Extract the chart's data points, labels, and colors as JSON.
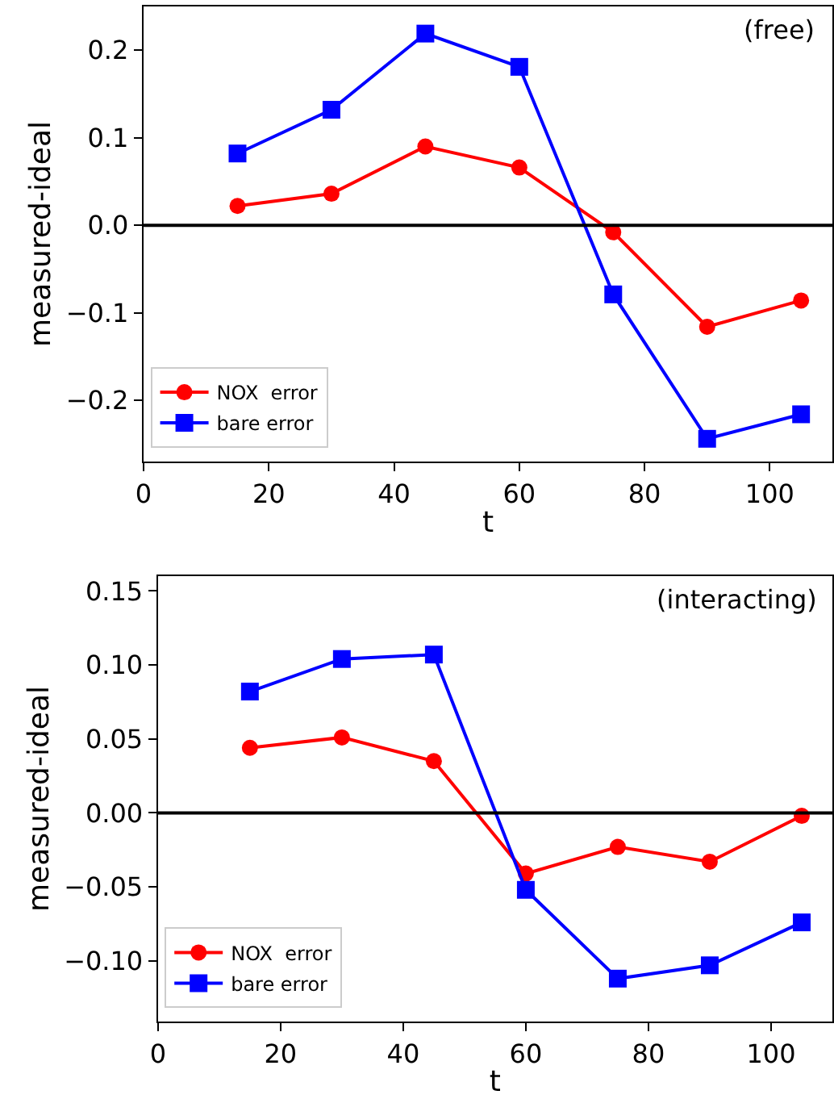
{
  "chart_data": [
    {
      "type": "line",
      "xlabel": "t",
      "ylabel": "measured-ideal",
      "annotations": [
        "(free)"
      ],
      "x": [
        15,
        30,
        45,
        60,
        75,
        90,
        105
      ],
      "xlim": [
        0,
        110
      ],
      "xticks": [
        0,
        20,
        40,
        60,
        80,
        100
      ],
      "ylim": [
        -0.27,
        0.25
      ],
      "yticks": [
        {
          "value": -0.2,
          "label": "−0.2"
        },
        {
          "value": -0.1,
          "label": "−0.1"
        },
        {
          "value": 0,
          "label": "0.0"
        },
        {
          "value": 0.1,
          "label": "0.1"
        },
        {
          "value": 0.2,
          "label": "0.2"
        }
      ],
      "ref_lines": [
        {
          "axis": "y",
          "value": 0,
          "color": "#000000"
        }
      ],
      "legend": "bottom left",
      "series": [
        {
          "name": "NOX  error",
          "color": "#ff0000",
          "marker": "circle",
          "values": [
            0.022,
            0.036,
            0.09,
            0.066,
            -0.008,
            -0.116,
            -0.086
          ]
        },
        {
          "name": "bare error",
          "color": "#0000ff",
          "marker": "square",
          "values": [
            0.082,
            0.132,
            0.219,
            0.181,
            -0.079,
            -0.244,
            -0.216
          ]
        }
      ]
    },
    {
      "type": "line",
      "xlabel": "t",
      "ylabel": "measured-ideal",
      "annotations": [
        "(interacting)"
      ],
      "x": [
        15,
        30,
        45,
        60,
        75,
        90,
        105
      ],
      "xlim": [
        0,
        110
      ],
      "xticks": [
        0,
        20,
        40,
        60,
        80,
        100
      ],
      "ylim": [
        -0.141,
        0.16
      ],
      "yticks": [
        {
          "value": -0.1,
          "label": "−0.10"
        },
        {
          "value": -0.05,
          "label": "−0.05"
        },
        {
          "value": 0,
          "label": "0.00"
        },
        {
          "value": 0.05,
          "label": "0.05"
        },
        {
          "value": 0.1,
          "label": "0.10"
        },
        {
          "value": 0.15,
          "label": "0.15"
        }
      ],
      "ref_lines": [
        {
          "axis": "y",
          "value": 0,
          "color": "#000000"
        }
      ],
      "legend": "bottom left",
      "series": [
        {
          "name": "NOX  error",
          "color": "#ff0000",
          "marker": "circle",
          "values": [
            0.044,
            0.051,
            0.035,
            -0.041,
            -0.023,
            -0.033,
            -0.002
          ]
        },
        {
          "name": "bare error",
          "color": "#0000ff",
          "marker": "square",
          "values": [
            0.082,
            0.104,
            0.107,
            -0.052,
            -0.112,
            -0.103,
            -0.074
          ]
        }
      ]
    }
  ]
}
